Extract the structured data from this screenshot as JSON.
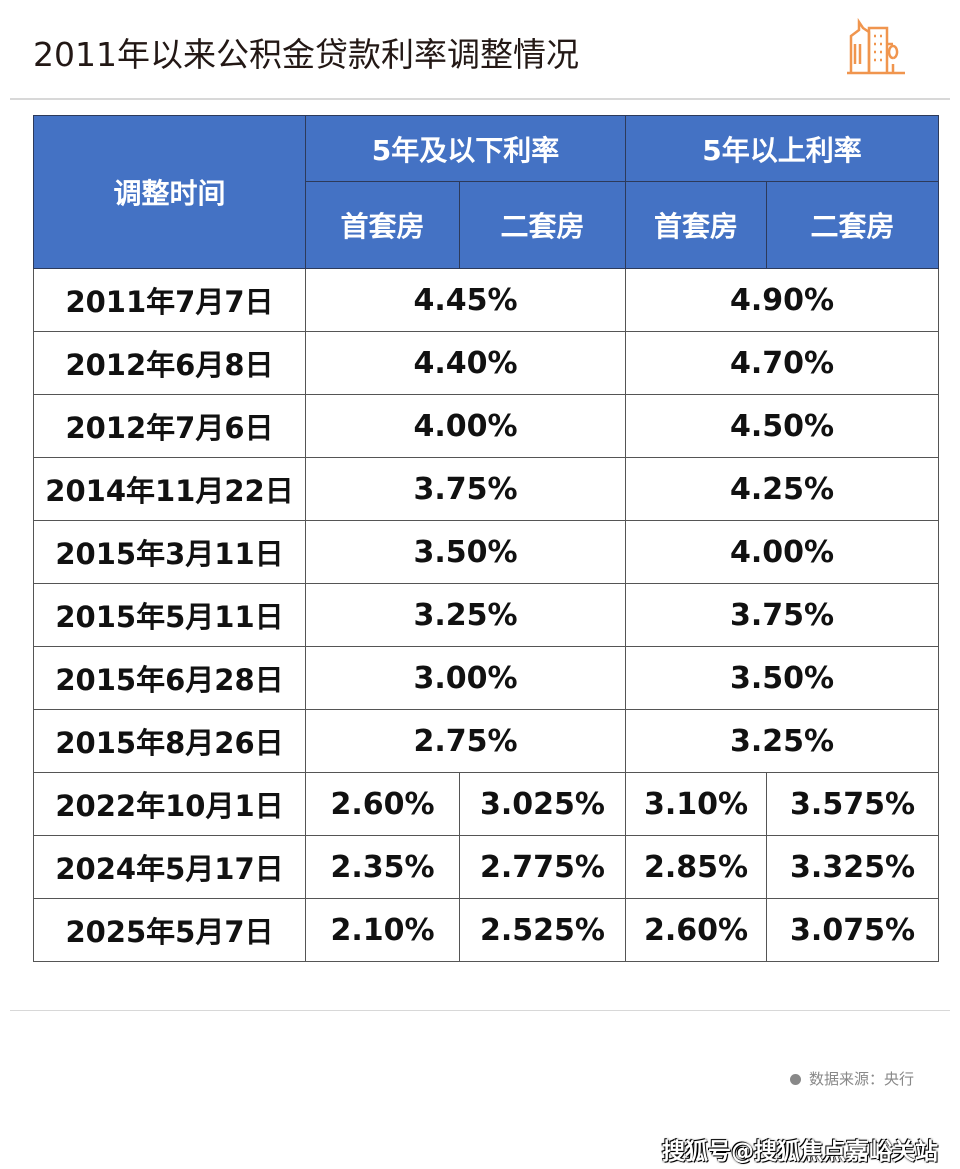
{
  "title": "2011年以来公积金贷款利率调整情况",
  "logo_icon": "buildings-icon",
  "accent_color": "#f0954e",
  "header_color": "#4472c4",
  "table": {
    "col_time": "调整时间",
    "group_short": "5年及以下利率",
    "group_long": "5年以上利率",
    "first_home": "首套房",
    "second_home": "二套房",
    "merged_rows": [
      {
        "date": "2011年7月7日",
        "short": "4.45%",
        "long": "4.90%"
      },
      {
        "date": "2012年6月8日",
        "short": "4.40%",
        "long": "4.70%"
      },
      {
        "date": "2012年7月6日",
        "short": "4.00%",
        "long": "4.50%"
      },
      {
        "date": "2014年11月22日",
        "short": "3.75%",
        "long": "4.25%"
      },
      {
        "date": "2015年3月11日",
        "short": "3.50%",
        "long": "4.00%"
      },
      {
        "date": "2015年5月11日",
        "short": "3.25%",
        "long": "3.75%"
      },
      {
        "date": "2015年6月28日",
        "short": "3.00%",
        "long": "3.50%"
      },
      {
        "date": "2015年8月26日",
        "short": "2.75%",
        "long": "3.25%"
      }
    ],
    "split_rows": [
      {
        "date": "2022年10月1日",
        "short_first": "2.60%",
        "short_second": "3.025%",
        "long_first": "3.10%",
        "long_second": "3.575%"
      },
      {
        "date": "2024年5月17日",
        "short_first": "2.35%",
        "short_second": "2.775%",
        "long_first": "2.85%",
        "long_second": "3.325%"
      },
      {
        "date": "2025年5月7日",
        "short_first": "2.10%",
        "short_second": "2.525%",
        "long_first": "2.60%",
        "long_second": "3.075%"
      }
    ]
  },
  "source": "数据来源：央行",
  "watermark": "搜狐号@搜狐焦点嘉峪关站"
}
